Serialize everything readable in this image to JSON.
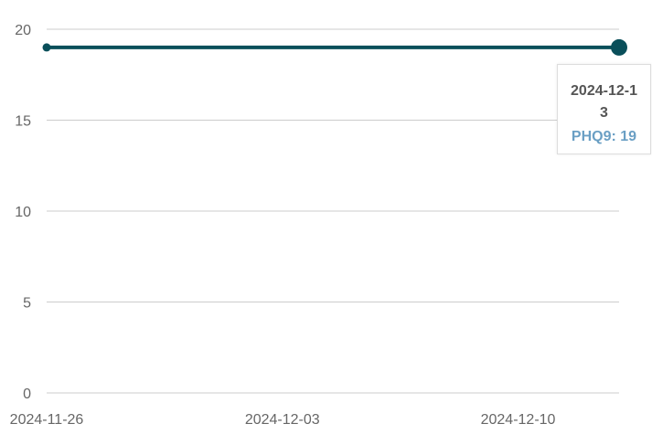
{
  "chart_data": {
    "type": "line",
    "x": [
      "2024-11-26",
      "2024-12-13"
    ],
    "series": [
      {
        "name": "PHQ9",
        "values": [
          19,
          19
        ],
        "color": "#0a4f5a"
      }
    ],
    "x_ticks": [
      "2024-11-26",
      "2024-12-03",
      "2024-12-10"
    ],
    "y_ticks": [
      0,
      5,
      10,
      15,
      20
    ],
    "xlim": [
      "2024-11-26",
      "2024-12-13"
    ],
    "ylim": [
      0,
      20
    ],
    "grid": true,
    "legend": "none",
    "tooltip": {
      "date": "2024-12-13",
      "series_label": "PHQ9",
      "value_text": "PHQ9: 19",
      "color": "#6a9fc4"
    }
  }
}
